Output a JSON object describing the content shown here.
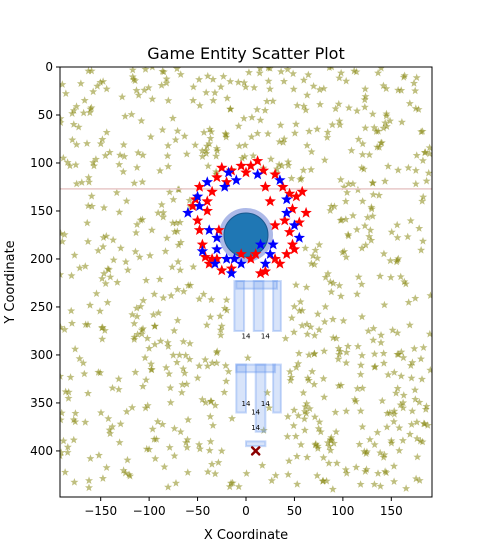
{
  "chart_data": {
    "type": "scatter",
    "title": "Game Entity Scatter Plot",
    "xlabel": "X Coordinate",
    "ylabel": "Y Coordinate",
    "xlim": [
      -192,
      192
    ],
    "ylim": [
      448,
      0
    ],
    "y_inverted": true,
    "grid": false,
    "legend": "none",
    "x_ticks": [
      -150,
      -100,
      -50,
      0,
      50,
      100,
      150
    ],
    "y_ticks": [
      0,
      50,
      100,
      150,
      200,
      250,
      300,
      350,
      400
    ],
    "colors": {
      "background_stars": "#808000",
      "red_stars": "#ff0000",
      "blue_stars": "#0000ff",
      "player": "#1f77b4",
      "player_ring": "#6a7fd6",
      "structure": "#6495ed",
      "enemy": "#8b0000"
    },
    "player": {
      "x": 0,
      "y": 175
    },
    "enemy_marker": {
      "x": 10,
      "y": 400
    },
    "horizontal_line_y": 127,
    "structure_labels": [
      {
        "x": 0,
        "y": 283,
        "text": "14"
      },
      {
        "x": 20,
        "y": 283,
        "text": "14"
      },
      {
        "x": 0,
        "y": 353,
        "text": "14"
      },
      {
        "x": 20,
        "y": 353,
        "text": "14"
      },
      {
        "x": 10,
        "y": 362,
        "text": "14"
      },
      {
        "x": 10,
        "y": 378,
        "text": "14"
      }
    ],
    "red_stars": [
      [
        -55,
        145
      ],
      [
        -52,
        138
      ],
      [
        -48,
        125
      ],
      [
        -40,
        150
      ],
      [
        -35,
        130
      ],
      [
        -30,
        115
      ],
      [
        -25,
        105
      ],
      [
        -15,
        108
      ],
      [
        -5,
        103
      ],
      [
        5,
        103
      ],
      [
        12,
        98
      ],
      [
        18,
        108
      ],
      [
        30,
        112
      ],
      [
        38,
        125
      ],
      [
        45,
        132
      ],
      [
        48,
        148
      ],
      [
        52,
        135
      ],
      [
        58,
        130
      ],
      [
        62,
        152
      ],
      [
        55,
        162
      ],
      [
        45,
        172
      ],
      [
        48,
        185
      ],
      [
        42,
        195
      ],
      [
        35,
        205
      ],
      [
        30,
        200
      ],
      [
        20,
        213
      ],
      [
        15,
        215
      ],
      [
        5,
        200
      ],
      [
        -5,
        195
      ],
      [
        -15,
        210
      ],
      [
        -25,
        212
      ],
      [
        -30,
        200
      ],
      [
        -38,
        205
      ],
      [
        -42,
        198
      ],
      [
        -45,
        185
      ],
      [
        -48,
        170
      ],
      [
        -50,
        160
      ],
      [
        -40,
        140
      ],
      [
        -35,
        200
      ],
      [
        10,
        195
      ],
      [
        20,
        125
      ],
      [
        25,
        140
      ],
      [
        30,
        165
      ],
      [
        -20,
        120
      ],
      [
        40,
        160
      ],
      [
        -28,
        170
      ],
      [
        0,
        110
      ],
      [
        50,
        190
      ]
    ],
    "blue_stars": [
      [
        -60,
        152
      ],
      [
        -50,
        135
      ],
      [
        -40,
        120
      ],
      [
        -22,
        125
      ],
      [
        -18,
        110
      ],
      [
        -10,
        118
      ],
      [
        12,
        112
      ],
      [
        35,
        118
      ],
      [
        42,
        138
      ],
      [
        50,
        165
      ],
      [
        55,
        178
      ],
      [
        42,
        152
      ],
      [
        25,
        195
      ],
      [
        20,
        205
      ],
      [
        -5,
        205
      ],
      [
        -12,
        200
      ],
      [
        -30,
        178
      ],
      [
        -38,
        170
      ],
      [
        -45,
        192
      ],
      [
        -30,
        190
      ],
      [
        -20,
        200
      ],
      [
        -15,
        215
      ],
      [
        -32,
        205
      ],
      [
        15,
        185
      ],
      [
        -48,
        145
      ],
      [
        28,
        185
      ]
    ],
    "structures": [
      {
        "x": -12,
        "y": 223,
        "w": 10,
        "h": 52
      },
      {
        "x": 8,
        "y": 223,
        "w": 10,
        "h": 52
      },
      {
        "x": 28,
        "y": 223,
        "w": 8,
        "h": 52
      },
      {
        "x": -10,
        "y": 223,
        "w": 42,
        "h": 8
      },
      {
        "x": -10,
        "y": 310,
        "w": 10,
        "h": 50
      },
      {
        "x": 10,
        "y": 310,
        "w": 10,
        "h": 70
      },
      {
        "x": 28,
        "y": 310,
        "w": 8,
        "h": 50
      },
      {
        "x": -10,
        "y": 310,
        "w": 40,
        "h": 8
      },
      {
        "x": 0,
        "y": 390,
        "w": 20,
        "h": 5
      }
    ]
  }
}
